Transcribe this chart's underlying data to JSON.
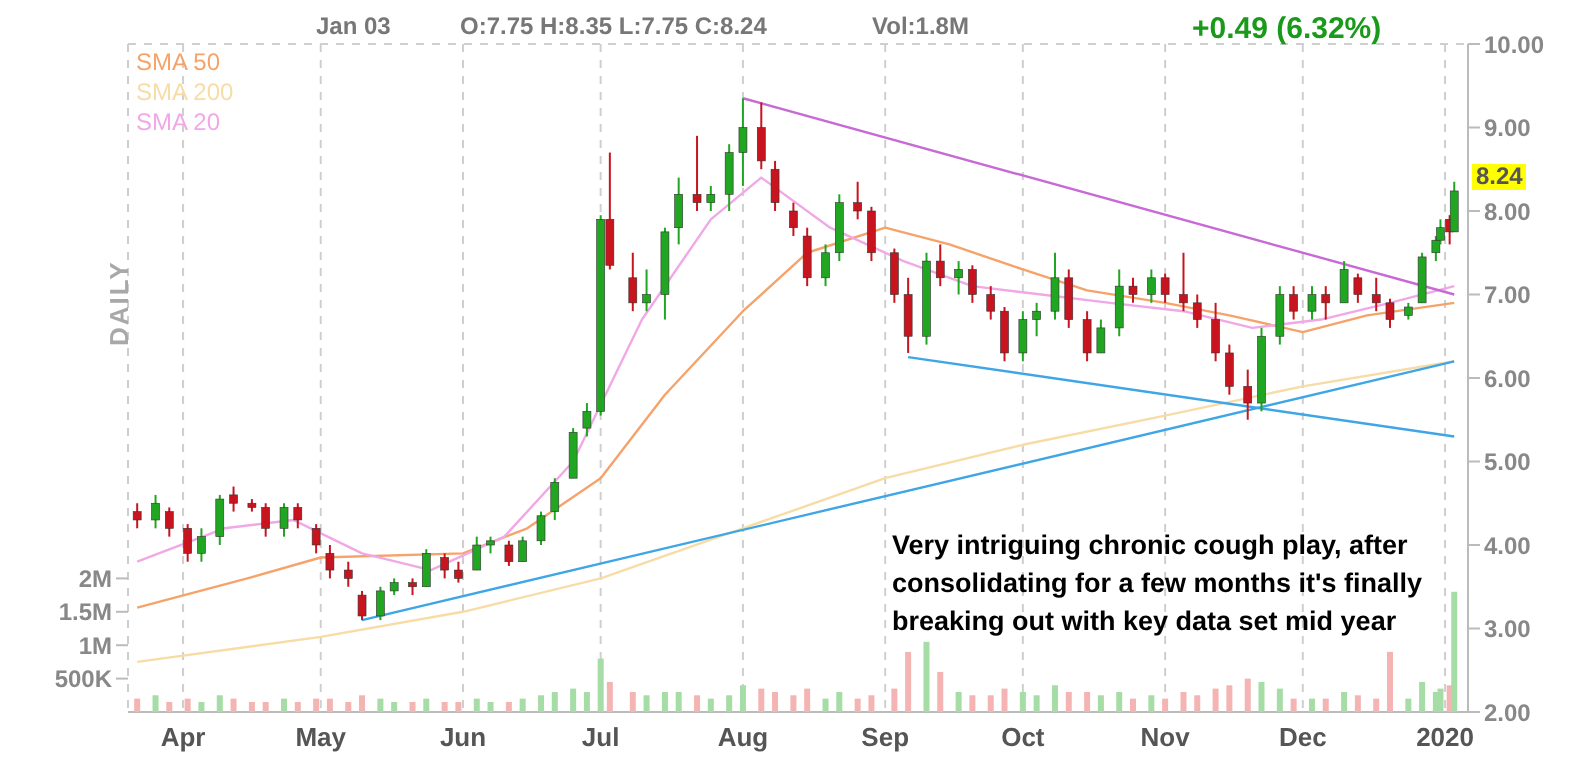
{
  "chart_data": {
    "type": "candlestick",
    "legend": "top left",
    "grid": true,
    "annotations": [
      "DAILY",
      "Jan 03",
      "O:7.75  H:8.35  L:7.75  C:8.24",
      "Vol:1.8M",
      "+0.49 (6.32%)",
      {
        "text": "8.24",
        "x": "2020-01-03",
        "y": 8.24
      },
      "Very intriguing chronic cough play, after consolidating for a few months it's finally breaking out with key data set mid year"
    ],
    "xlim": [
      "2019-03-20",
      "2020-01-06"
    ],
    "xticks": [
      {
        "value": "2019-04-01",
        "label": "Apr"
      },
      {
        "value": "2019-05-01",
        "label": "May"
      },
      {
        "value": "2019-06-01",
        "label": "Jun"
      },
      {
        "value": "2019-07-01",
        "label": "Jul"
      },
      {
        "value": "2019-08-01",
        "label": "Aug"
      },
      {
        "value": "2019-09-01",
        "label": "Sep"
      },
      {
        "value": "2019-10-01",
        "label": "Oct"
      },
      {
        "value": "2019-11-01",
        "label": "Nov"
      },
      {
        "value": "2019-12-01",
        "label": "Dec"
      },
      {
        "value": "2020-01-01",
        "label": "2020"
      }
    ],
    "ylim": [
      2,
      10
    ],
    "yticks": [
      {
        "value": 2,
        "label": "2.00"
      },
      {
        "value": 3,
        "label": "3.00"
      },
      {
        "value": 4,
        "label": "4.00"
      },
      {
        "value": 5,
        "label": "5.00"
      },
      {
        "value": 6,
        "label": "6.00"
      },
      {
        "value": 7,
        "label": "7.00"
      },
      {
        "value": 8,
        "label": "8.00"
      },
      {
        "value": 9,
        "label": "9.00"
      },
      {
        "value": 10,
        "label": "10.00"
      }
    ],
    "y2lim": [
      0,
      10000000
    ],
    "y2ticks": [
      {
        "value": 500000,
        "label": "500K"
      },
      {
        "value": 1000000,
        "label": "1M"
      },
      {
        "value": 1500000,
        "label": "1.5M"
      },
      {
        "value": 2000000,
        "label": "2M"
      }
    ],
    "x": [
      "2019-03-22",
      "2019-03-26",
      "2019-03-29",
      "2019-04-02",
      "2019-04-05",
      "2019-04-09",
      "2019-04-12",
      "2019-04-16",
      "2019-04-19",
      "2019-04-23",
      "2019-04-26",
      "2019-04-30",
      "2019-05-03",
      "2019-05-07",
      "2019-05-10",
      "2019-05-14",
      "2019-05-17",
      "2019-05-21",
      "2019-05-24",
      "2019-05-28",
      "2019-05-31",
      "2019-06-04",
      "2019-06-07",
      "2019-06-11",
      "2019-06-14",
      "2019-06-18",
      "2019-06-21",
      "2019-06-25",
      "2019-06-28",
      "2019-07-01",
      "2019-07-03",
      "2019-07-08",
      "2019-07-11",
      "2019-07-15",
      "2019-07-18",
      "2019-07-22",
      "2019-07-25",
      "2019-07-29",
      "2019-08-01",
      "2019-08-05",
      "2019-08-08",
      "2019-08-12",
      "2019-08-15",
      "2019-08-19",
      "2019-08-22",
      "2019-08-26",
      "2019-08-29",
      "2019-09-03",
      "2019-09-06",
      "2019-09-10",
      "2019-09-13",
      "2019-09-17",
      "2019-09-20",
      "2019-09-24",
      "2019-09-27",
      "2019-10-01",
      "2019-10-04",
      "2019-10-08",
      "2019-10-11",
      "2019-10-15",
      "2019-10-18",
      "2019-10-22",
      "2019-10-25",
      "2019-10-29",
      "2019-11-01",
      "2019-11-05",
      "2019-11-08",
      "2019-11-12",
      "2019-11-15",
      "2019-11-19",
      "2019-11-22",
      "2019-11-26",
      "2019-11-29",
      "2019-12-03",
      "2019-12-06",
      "2019-12-10",
      "2019-12-13",
      "2019-12-17",
      "2019-12-20",
      "2019-12-24",
      "2019-12-27",
      "2019-12-30",
      "2019-12-31",
      "2020-01-02",
      "2020-01-03"
    ],
    "ohlc": [
      [
        4.4,
        4.5,
        4.2,
        4.3
      ],
      [
        4.3,
        4.6,
        4.2,
        4.5
      ],
      [
        4.4,
        4.45,
        4.1,
        4.2
      ],
      [
        4.2,
        4.25,
        3.8,
        3.9
      ],
      [
        3.9,
        4.2,
        3.8,
        4.1
      ],
      [
        4.1,
        4.6,
        4.0,
        4.55
      ],
      [
        4.6,
        4.7,
        4.4,
        4.5
      ],
      [
        4.5,
        4.55,
        4.4,
        4.45
      ],
      [
        4.45,
        4.5,
        4.1,
        4.2
      ],
      [
        4.2,
        4.5,
        4.1,
        4.45
      ],
      [
        4.45,
        4.5,
        4.2,
        4.3
      ],
      [
        4.2,
        4.25,
        3.9,
        4.0
      ],
      [
        3.9,
        4.0,
        3.6,
        3.7
      ],
      [
        3.7,
        3.8,
        3.5,
        3.6
      ],
      [
        3.4,
        3.45,
        3.1,
        3.15
      ],
      [
        3.15,
        3.5,
        3.1,
        3.45
      ],
      [
        3.45,
        3.6,
        3.4,
        3.55
      ],
      [
        3.55,
        3.6,
        3.4,
        3.5
      ],
      [
        3.5,
        3.95,
        3.5,
        3.9
      ],
      [
        3.85,
        3.9,
        3.6,
        3.7
      ],
      [
        3.7,
        3.8,
        3.55,
        3.6
      ],
      [
        3.7,
        4.1,
        3.7,
        4.0
      ],
      [
        4.0,
        4.1,
        3.9,
        4.05
      ],
      [
        4.0,
        4.05,
        3.75,
        3.8
      ],
      [
        3.8,
        4.1,
        3.8,
        4.05
      ],
      [
        4.05,
        4.4,
        4.0,
        4.35
      ],
      [
        4.4,
        4.8,
        4.3,
        4.75
      ],
      [
        4.8,
        5.4,
        4.8,
        5.35
      ],
      [
        5.4,
        5.7,
        5.3,
        5.6
      ],
      [
        5.6,
        7.95,
        5.55,
        7.9
      ],
      [
        7.9,
        8.7,
        7.3,
        7.35
      ],
      [
        7.2,
        7.5,
        6.8,
        6.9
      ],
      [
        6.9,
        7.3,
        6.8,
        7.0
      ],
      [
        7.0,
        7.8,
        6.7,
        7.75
      ],
      [
        7.8,
        8.4,
        7.6,
        8.2
      ],
      [
        8.2,
        8.9,
        8.0,
        8.1
      ],
      [
        8.1,
        8.3,
        8.0,
        8.2
      ],
      [
        8.2,
        8.8,
        8.0,
        8.7
      ],
      [
        8.7,
        9.35,
        8.3,
        9.0
      ],
      [
        9.0,
        9.3,
        8.5,
        8.6
      ],
      [
        8.5,
        8.6,
        8.0,
        8.1
      ],
      [
        8.0,
        8.1,
        7.7,
        7.8
      ],
      [
        7.7,
        7.8,
        7.1,
        7.2
      ],
      [
        7.2,
        7.6,
        7.1,
        7.5
      ],
      [
        7.5,
        8.2,
        7.4,
        8.1
      ],
      [
        8.1,
        8.35,
        7.9,
        8.0
      ],
      [
        8.0,
        8.05,
        7.4,
        7.5
      ],
      [
        7.5,
        7.55,
        6.9,
        7.0
      ],
      [
        7.0,
        7.2,
        6.3,
        6.5
      ],
      [
        6.5,
        7.5,
        6.4,
        7.4
      ],
      [
        7.4,
        7.6,
        7.1,
        7.2
      ],
      [
        7.2,
        7.4,
        7.0,
        7.3
      ],
      [
        7.3,
        7.35,
        6.9,
        7.0
      ],
      [
        7.0,
        7.1,
        6.7,
        6.8
      ],
      [
        6.8,
        6.85,
        6.2,
        6.3
      ],
      [
        6.3,
        6.8,
        6.2,
        6.7
      ],
      [
        6.7,
        6.9,
        6.5,
        6.8
      ],
      [
        6.8,
        7.5,
        6.7,
        7.2
      ],
      [
        7.2,
        7.3,
        6.6,
        6.7
      ],
      [
        6.7,
        6.8,
        6.2,
        6.3
      ],
      [
        6.3,
        6.7,
        6.3,
        6.6
      ],
      [
        6.6,
        7.3,
        6.5,
        7.1
      ],
      [
        7.1,
        7.2,
        6.9,
        7.0
      ],
      [
        7.0,
        7.3,
        6.9,
        7.2
      ],
      [
        7.2,
        7.25,
        6.9,
        7.0
      ],
      [
        7.0,
        7.5,
        6.8,
        6.9
      ],
      [
        6.9,
        7.0,
        6.6,
        6.7
      ],
      [
        6.7,
        6.9,
        6.2,
        6.3
      ],
      [
        6.3,
        6.4,
        5.8,
        5.9
      ],
      [
        5.9,
        6.1,
        5.5,
        5.7
      ],
      [
        5.7,
        6.6,
        5.6,
        6.5
      ],
      [
        6.5,
        7.1,
        6.4,
        7.0
      ],
      [
        7.0,
        7.1,
        6.7,
        6.8
      ],
      [
        6.8,
        7.1,
        6.7,
        7.0
      ],
      [
        7.0,
        7.1,
        6.7,
        6.9
      ],
      [
        6.9,
        7.4,
        6.9,
        7.3
      ],
      [
        7.2,
        7.25,
        6.9,
        7.0
      ],
      [
        7.0,
        7.2,
        6.8,
        6.9
      ],
      [
        6.9,
        6.95,
        6.6,
        6.7
      ],
      [
        6.75,
        6.9,
        6.7,
        6.85
      ],
      [
        6.9,
        7.5,
        6.9,
        7.45
      ],
      [
        7.5,
        7.7,
        7.4,
        7.65
      ],
      [
        7.65,
        7.9,
        7.6,
        7.8
      ],
      [
        7.9,
        7.95,
        7.6,
        7.75
      ],
      [
        7.75,
        8.35,
        7.75,
        8.24
      ]
    ],
    "series": [
      {
        "name": "SMA 50",
        "type": "line",
        "color": "#f5a36a",
        "x": [
          "2019-03-22",
          "2019-04-15",
          "2019-05-01",
          "2019-06-01",
          "2019-06-15",
          "2019-07-01",
          "2019-07-15",
          "2019-08-01",
          "2019-08-15",
          "2019-09-01",
          "2019-09-15",
          "2019-10-01",
          "2019-10-15",
          "2019-11-01",
          "2019-11-15",
          "2019-12-01",
          "2019-12-15",
          "2020-01-03"
        ],
        "values": [
          3.25,
          3.6,
          3.85,
          3.9,
          4.2,
          4.8,
          5.8,
          6.8,
          7.5,
          7.8,
          7.6,
          7.3,
          7.05,
          6.9,
          6.75,
          6.55,
          6.75,
          6.9
        ]
      },
      {
        "name": "SMA 200",
        "type": "line",
        "color": "#f7dca6",
        "x": [
          "2019-03-22",
          "2019-05-01",
          "2019-06-01",
          "2019-07-01",
          "2019-08-01",
          "2019-09-01",
          "2019-10-01",
          "2019-11-01",
          "2019-12-01",
          "2020-01-03"
        ],
        "values": [
          2.6,
          2.9,
          3.2,
          3.6,
          4.2,
          4.8,
          5.2,
          5.55,
          5.9,
          6.2
        ]
      },
      {
        "name": "SMA 20",
        "type": "line",
        "color": "#f0a8e6",
        "x": [
          "2019-03-22",
          "2019-04-10",
          "2019-04-25",
          "2019-05-10",
          "2019-05-25",
          "2019-06-10",
          "2019-06-25",
          "2019-07-10",
          "2019-07-25",
          "2019-08-05",
          "2019-08-20",
          "2019-09-05",
          "2019-09-20",
          "2019-10-05",
          "2019-10-20",
          "2019-11-05",
          "2019-11-20",
          "2019-12-05",
          "2019-12-20",
          "2020-01-03"
        ],
        "values": [
          3.8,
          4.2,
          4.3,
          3.9,
          3.7,
          4.1,
          5.0,
          6.7,
          7.9,
          8.4,
          7.8,
          7.4,
          7.1,
          7.0,
          6.9,
          6.8,
          6.6,
          6.7,
          6.9,
          7.1
        ]
      },
      {
        "type": "line",
        "color": "#c86ad6",
        "x": [
          "2019-08-01",
          "2020-01-03"
        ],
        "values": [
          9.35,
          7.0
        ]
      },
      {
        "type": "line",
        "color": "#3ea6e6",
        "x": [
          "2019-09-06",
          "2020-01-03"
        ],
        "values": [
          6.25,
          5.3
        ]
      },
      {
        "type": "line",
        "color": "#3ea6e6",
        "x": [
          "2019-05-10",
          "2020-01-03"
        ],
        "values": [
          3.1,
          6.2
        ]
      },
      {
        "type": "bar",
        "axis": "y2",
        "colors": [
          "#f4b4b4",
          "#a6dca6",
          "#f4b4b4",
          "#f4b4b4",
          "#a6dca6",
          "#a6dca6",
          "#f4b4b4",
          "#f4b4b4",
          "#f4b4b4",
          "#a6dca6",
          "#f4b4b4",
          "#f4b4b4",
          "#f4b4b4",
          "#f4b4b4",
          "#f4b4b4",
          "#a6dca6",
          "#a6dca6",
          "#f4b4b4",
          "#a6dca6",
          "#f4b4b4",
          "#f4b4b4",
          "#a6dca6",
          "#a6dca6",
          "#f4b4b4",
          "#a6dca6",
          "#a6dca6",
          "#a6dca6",
          "#a6dca6",
          "#a6dca6",
          "#a6dca6",
          "#f4b4b4",
          "#f4b4b4",
          "#a6dca6",
          "#a6dca6",
          "#a6dca6",
          "#f4b4b4",
          "#a6dca6",
          "#a6dca6",
          "#a6dca6",
          "#f4b4b4",
          "#f4b4b4",
          "#f4b4b4",
          "#f4b4b4",
          "#a6dca6",
          "#a6dca6",
          "#f4b4b4",
          "#f4b4b4",
          "#f4b4b4",
          "#f4b4b4",
          "#a6dca6",
          "#f4b4b4",
          "#a6dca6",
          "#f4b4b4",
          "#f4b4b4",
          "#f4b4b4",
          "#a6dca6",
          "#a6dca6",
          "#a6dca6",
          "#f4b4b4",
          "#f4b4b4",
          "#a6dca6",
          "#a6dca6",
          "#f4b4b4",
          "#a6dca6",
          "#f4b4b4",
          "#f4b4b4",
          "#f4b4b4",
          "#f4b4b4",
          "#f4b4b4",
          "#f4b4b4",
          "#a6dca6",
          "#a6dca6",
          "#f4b4b4",
          "#a6dca6",
          "#f4b4b4",
          "#a6dca6",
          "#f4b4b4",
          "#f4b4b4",
          "#f4b4b4",
          "#a6dca6",
          "#a6dca6",
          "#a6dca6",
          "#a6dca6",
          "#f4b4b4",
          "#a6dca6"
        ],
        "values": [
          200000,
          250000,
          150000,
          200000,
          150000,
          250000,
          200000,
          150000,
          150000,
          200000,
          150000,
          200000,
          200000,
          150000,
          250000,
          200000,
          150000,
          150000,
          200000,
          150000,
          150000,
          200000,
          150000,
          150000,
          200000,
          250000,
          300000,
          350000,
          300000,
          800000,
          450000,
          300000,
          250000,
          300000,
          300000,
          250000,
          200000,
          250000,
          400000,
          350000,
          300000,
          250000,
          350000,
          200000,
          300000,
          200000,
          250000,
          350000,
          900000,
          1050000,
          600000,
          300000,
          250000,
          250000,
          350000,
          300000,
          250000,
          400000,
          300000,
          300000,
          250000,
          300000,
          200000,
          250000,
          200000,
          300000,
          250000,
          350000,
          400000,
          500000,
          450000,
          350000,
          200000,
          200000,
          200000,
          300000,
          250000,
          200000,
          900000,
          200000,
          450000,
          300000,
          350000,
          400000,
          1800000
        ]
      }
    ]
  }
}
